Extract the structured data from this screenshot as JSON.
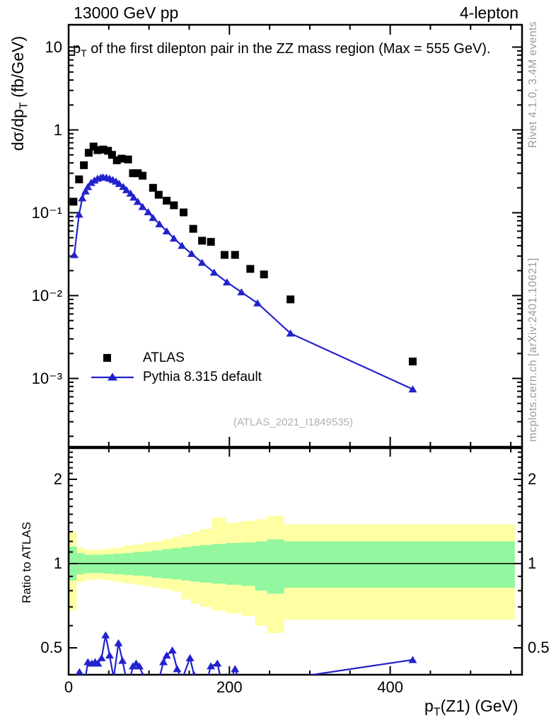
{
  "header": {
    "left": "13000 GeV pp",
    "right": "4-lepton"
  },
  "main_title": {
    "pre": "p",
    "sub": "T",
    "post": " of the first dilepton pair in the ZZ mass region (Max = 555 GeV)."
  },
  "axes": {
    "ylabel_main": {
      "pre": "dσ/dp",
      "sub": "T",
      "post": " (fb/GeV)"
    },
    "ylabel_ratio": "Ratio to ATLAS",
    "xlabel": {
      "pre": "p",
      "sub": "T",
      "post": "(Z1) (GeV)"
    }
  },
  "legend": [
    {
      "label": "ATLAS",
      "marker": "square",
      "color": "#000000"
    },
    {
      "label": "Pythia 8.315 default",
      "marker": "triangle-line",
      "color": "#2222cc"
    }
  ],
  "watermark": "(ATLAS_2021_I1849535)",
  "side_notes": {
    "top": "Rivet 4.1.0,  3.4M events",
    "bottom": "mcplots.cern.ch [arXiv:2401.10621]"
  },
  "colors": {
    "pythia": "#2222cc",
    "atlas": "#000000",
    "band_outer": "#feffa2",
    "band_inner": "#92f79e",
    "frame": "#000000",
    "gray_text": "#9a9a9a"
  },
  "chart_data": [
    {
      "type": "scatter",
      "title": "pT of the first dilepton pair in the ZZ mass region (Max = 555 GeV).",
      "xlabel": "pT(Z1) (GeV)",
      "ylabel": "dσ/dpT (fb/GeV)",
      "xlim": [
        0,
        564
      ],
      "yscale": "log",
      "ylim": [
        0.00015,
        18.6
      ],
      "xticks": [
        {
          "label": "0",
          "v": 0
        },
        {
          "label": "200",
          "v": 200
        },
        {
          "label": "400",
          "v": 400
        }
      ],
      "xtick_minor_step": 50,
      "yticks": [
        {
          "label": "10",
          "v": 10
        },
        {
          "label": "1",
          "v": 1
        },
        {
          "label": "10⁻¹",
          "v": 0.1
        },
        {
          "label": "10⁻²",
          "v": 0.01
        },
        {
          "label": "10⁻³",
          "v": 0.001
        }
      ],
      "legend_position": "left-middle",
      "grid": false,
      "series": [
        {
          "name": "ATLAS",
          "marker": "square",
          "line": false,
          "color": "#000000",
          "points": [
            [
              6,
              0.136
            ],
            [
              13,
              0.253
            ],
            [
              19,
              0.375
            ],
            [
              25,
              0.53
            ],
            [
              31,
              0.63
            ],
            [
              36,
              0.57
            ],
            [
              43,
              0.58
            ],
            [
              49,
              0.56
            ],
            [
              54,
              0.5
            ],
            [
              60,
              0.43
            ],
            [
              66,
              0.45
            ],
            [
              74,
              0.44
            ],
            [
              80,
              0.3
            ],
            [
              86,
              0.3
            ],
            [
              92,
              0.28
            ],
            [
              105,
              0.2
            ],
            [
              112,
              0.165
            ],
            [
              122,
              0.14
            ],
            [
              131,
              0.123
            ],
            [
              143,
              0.101
            ],
            [
              155,
              0.064
            ],
            [
              166,
              0.046
            ],
            [
              177,
              0.0445
            ],
            [
              194,
              0.031
            ],
            [
              207,
              0.031
            ],
            [
              226,
              0.021
            ],
            [
              243,
              0.018
            ],
            [
              276,
              0.009
            ],
            [
              428,
              0.0016
            ]
          ]
        },
        {
          "name": "Pythia 8.315 default",
          "marker": "triangle",
          "line": true,
          "color": "#2222cc",
          "points": [
            [
              7,
              0.031
            ],
            [
              13,
              0.0955
            ],
            [
              17,
              0.15
            ],
            [
              21,
              0.182
            ],
            [
              24,
              0.205
            ],
            [
              28,
              0.23
            ],
            [
              32,
              0.246
            ],
            [
              36,
              0.259
            ],
            [
              40,
              0.266
            ],
            [
              43,
              0.268
            ],
            [
              47,
              0.266
            ],
            [
              51,
              0.259
            ],
            [
              55,
              0.25
            ],
            [
              59,
              0.239
            ],
            [
              63,
              0.224
            ],
            [
              68,
              0.206
            ],
            [
              72,
              0.188
            ],
            [
              77,
              0.171
            ],
            [
              81,
              0.153
            ],
            [
              86,
              0.136
            ],
            [
              92,
              0.118
            ],
            [
              99,
              0.102
            ],
            [
              105,
              0.087
            ],
            [
              113,
              0.073
            ],
            [
              122,
              0.06
            ],
            [
              131,
              0.049
            ],
            [
              141,
              0.04
            ],
            [
              153,
              0.032
            ],
            [
              166,
              0.025
            ],
            [
              181,
              0.019
            ],
            [
              197,
              0.0145
            ],
            [
              215,
              0.011
            ],
            [
              235,
              0.0081
            ],
            [
              276,
              0.0035
            ],
            [
              428,
              0.00074
            ]
          ]
        }
      ]
    },
    {
      "type": "ratio",
      "ylabel": "Ratio to ATLAS",
      "yscale": "log",
      "ylim": [
        0.4,
        2.58
      ],
      "yticks": [
        {
          "label": "2",
          "v": 2
        },
        {
          "label": "1",
          "v": 1
        },
        {
          "label": "0.5",
          "v": 0.5
        }
      ],
      "reference_line": 1,
      "band_max_x": 555,
      "bands": [
        {
          "x0": 0,
          "x1": 10,
          "outer": [
            0.68,
            1.3
          ],
          "inner": [
            0.87,
            1.15
          ]
        },
        {
          "x0": 10,
          "x1": 20,
          "outer": [
            0.86,
            1.14
          ],
          "inner": [
            0.915,
            1.09
          ]
        },
        {
          "x0": 20,
          "x1": 32,
          "outer": [
            0.875,
            1.12
          ],
          "inner": [
            0.925,
            1.075
          ]
        },
        {
          "x0": 32,
          "x1": 44,
          "outer": [
            0.88,
            1.12
          ],
          "inner": [
            0.925,
            1.075
          ]
        },
        {
          "x0": 44,
          "x1": 56,
          "outer": [
            0.87,
            1.13
          ],
          "inner": [
            0.92,
            1.08
          ]
        },
        {
          "x0": 56,
          "x1": 68,
          "outer": [
            0.86,
            1.14
          ],
          "inner": [
            0.915,
            1.085
          ]
        },
        {
          "x0": 68,
          "x1": 80,
          "outer": [
            0.85,
            1.16
          ],
          "inner": [
            0.91,
            1.09
          ]
        },
        {
          "x0": 80,
          "x1": 92,
          "outer": [
            0.84,
            1.17
          ],
          "inner": [
            0.905,
            1.1
          ]
        },
        {
          "x0": 92,
          "x1": 104,
          "outer": [
            0.83,
            1.19
          ],
          "inner": [
            0.9,
            1.105
          ]
        },
        {
          "x0": 104,
          "x1": 116,
          "outer": [
            0.82,
            1.2
          ],
          "inner": [
            0.89,
            1.115
          ]
        },
        {
          "x0": 116,
          "x1": 128,
          "outer": [
            0.81,
            1.22
          ],
          "inner": [
            0.885,
            1.125
          ]
        },
        {
          "x0": 128,
          "x1": 140,
          "outer": [
            0.795,
            1.245
          ],
          "inner": [
            0.878,
            1.135
          ]
        },
        {
          "x0": 140,
          "x1": 152,
          "outer": [
            0.745,
            1.27
          ],
          "inner": [
            0.87,
            1.145
          ]
        },
        {
          "x0": 152,
          "x1": 164,
          "outer": [
            0.72,
            1.3
          ],
          "inner": [
            0.862,
            1.155
          ]
        },
        {
          "x0": 164,
          "x1": 178,
          "outer": [
            0.7,
            1.33
          ],
          "inner": [
            0.855,
            1.165
          ]
        },
        {
          "x0": 178,
          "x1": 196,
          "outer": [
            0.68,
            1.46
          ],
          "inner": [
            0.848,
            1.175
          ]
        },
        {
          "x0": 196,
          "x1": 215,
          "outer": [
            0.665,
            1.4
          ],
          "inner": [
            0.84,
            1.185
          ]
        },
        {
          "x0": 215,
          "x1": 232,
          "outer": [
            0.65,
            1.42
          ],
          "inner": [
            0.832,
            1.19
          ]
        },
        {
          "x0": 232,
          "x1": 247,
          "outer": [
            0.6,
            1.44
          ],
          "inner": [
            0.8,
            1.2
          ]
        },
        {
          "x0": 247,
          "x1": 268,
          "outer": [
            0.565,
            1.48
          ],
          "inner": [
            0.78,
            1.22
          ]
        },
        {
          "x0": 268,
          "x1": 555,
          "outer": [
            0.63,
            1.38
          ],
          "inner": [
            0.82,
            1.2
          ]
        }
      ],
      "series": [
        {
          "name": "Pythia 8.315 default / ATLAS",
          "marker": "triangle",
          "line": true,
          "color": "#2222cc",
          "points": [
            [
              6,
              0.23
            ],
            [
              13.5,
              0.41
            ],
            [
              18,
              0.345
            ],
            [
              24,
              0.445
            ],
            [
              29,
              0.44
            ],
            [
              33,
              0.445
            ],
            [
              36.5,
              0.44
            ],
            [
              41,
              0.46
            ],
            [
              46,
              0.555
            ],
            [
              51,
              0.47
            ],
            [
              56,
              0.39
            ],
            [
              62,
              0.52
            ],
            [
              67,
              0.45
            ],
            [
              74,
              0.36
            ],
            [
              80,
              0.43
            ],
            [
              84,
              0.44
            ],
            [
              88,
              0.43
            ],
            [
              93,
              0.395
            ],
            [
              105,
              0.32
            ],
            [
              118,
              0.445
            ],
            [
              122,
              0.47
            ],
            [
              129,
              0.49
            ],
            [
              135,
              0.42
            ],
            [
              141,
              0.385
            ],
            [
              151,
              0.46
            ],
            [
              156,
              0.4
            ],
            [
              166,
              0.33
            ],
            [
              177,
              0.43
            ],
            [
              185,
              0.44
            ],
            [
              194,
              0.34
            ],
            [
              207,
              0.42
            ],
            [
              226,
              0.3
            ],
            [
              276,
              0.39
            ],
            [
              428,
              0.453
            ]
          ]
        }
      ]
    }
  ]
}
